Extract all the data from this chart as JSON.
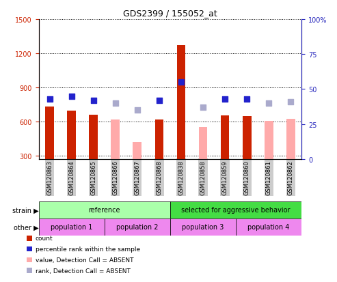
{
  "title": "GDS2399 / 155052_at",
  "samples": [
    "GSM120863",
    "GSM120864",
    "GSM120865",
    "GSM120866",
    "GSM120867",
    "GSM120868",
    "GSM120838",
    "GSM120858",
    "GSM120859",
    "GSM120860",
    "GSM120861",
    "GSM120862"
  ],
  "count_values": [
    730,
    695,
    660,
    null,
    null,
    615,
    1270,
    null,
    655,
    645,
    null,
    null
  ],
  "absent_value": [
    null,
    null,
    null,
    618,
    420,
    null,
    null,
    550,
    null,
    null,
    605,
    625
  ],
  "rank_present": [
    43,
    45,
    42,
    null,
    null,
    42,
    55,
    null,
    43,
    43,
    null,
    null
  ],
  "rank_absent": [
    null,
    null,
    null,
    40,
    35,
    null,
    null,
    37,
    null,
    null,
    40,
    41
  ],
  "ylim_left": [
    270,
    1500
  ],
  "ylim_right": [
    0,
    100
  ],
  "yticks_left": [
    300,
    600,
    900,
    1200,
    1500
  ],
  "yticks_right": [
    0,
    25,
    50,
    75,
    100
  ],
  "count_color": "#cc2200",
  "absent_value_color": "#ffaaaa",
  "rank_present_color": "#2222cc",
  "rank_absent_color": "#aaaacc",
  "strain_reference_color": "#aaffaa",
  "strain_selected_color": "#44dd44",
  "other_color": "#ee88ee",
  "strain_labels": [
    "reference",
    "selected for aggressive behavior"
  ],
  "other_labels": [
    "population 1",
    "population 2",
    "population 3",
    "population 4"
  ],
  "legend_items": [
    {
      "label": "count",
      "color": "#cc2200"
    },
    {
      "label": "percentile rank within the sample",
      "color": "#2222cc"
    },
    {
      "label": "value, Detection Call = ABSENT",
      "color": "#ffaaaa"
    },
    {
      "label": "rank, Detection Call = ABSENT",
      "color": "#aaaacc"
    }
  ],
  "left_axis_color": "#cc2200",
  "right_axis_color": "#2222bb",
  "bg_color": "#ffffff"
}
